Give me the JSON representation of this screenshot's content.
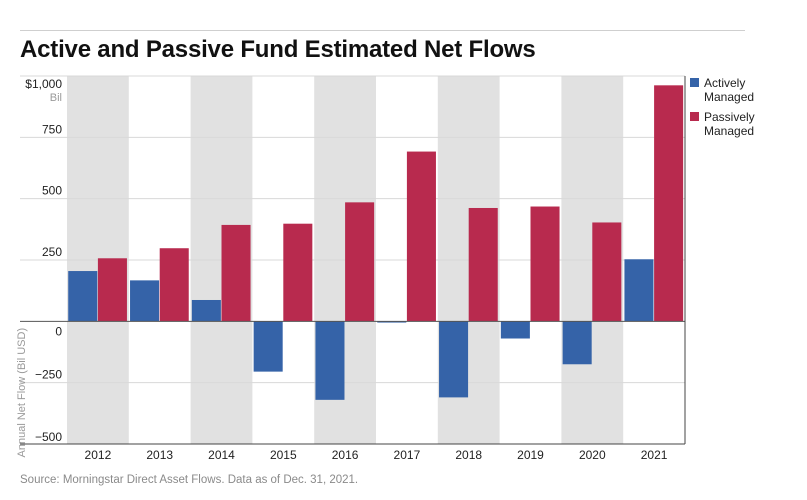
{
  "page": {
    "title": "Active and Passive Fund Estimated Net Flows",
    "source": "Source: Morningstar Direct Asset Flows. Data as of Dec. 31, 2021."
  },
  "colors": {
    "active": "#3563a8",
    "passive": "#b82a4e",
    "band": "#e1e1e1",
    "grid": "#d8d8d8",
    "axis": "#444444",
    "tick_text": "#222222"
  },
  "chart_data": {
    "type": "bar",
    "title": "Active and Passive Fund Estimated Net Flows",
    "ylabel": "Annual Net Flow (Bil USD)",
    "xlabel": "",
    "ylim": [
      -500,
      1000
    ],
    "yticks": [
      {
        "value": 1000,
        "label": "$1,000"
      },
      {
        "value": 750,
        "label": "750"
      },
      {
        "value": 500,
        "label": "500"
      },
      {
        "value": 250,
        "label": "250"
      },
      {
        "value": 0,
        "label": "0"
      },
      {
        "value": -250,
        "label": "−250"
      },
      {
        "value": -500,
        "label": "−500"
      }
    ],
    "ytick_unit": "Bil",
    "grid": true,
    "legend_position": "top-right",
    "categories": [
      "2012",
      "2013",
      "2014",
      "2015",
      "2016",
      "2017",
      "2018",
      "2019",
      "2020",
      "2021"
    ],
    "series": [
      {
        "name": "Actively Managed",
        "values": [
          205,
          167,
          87,
          -205,
          -320,
          -5,
          -310,
          -70,
          -175,
          253
        ]
      },
      {
        "name": "Passively Managed",
        "values": [
          257,
          298,
          393,
          398,
          485,
          692,
          462,
          468,
          403,
          962
        ]
      }
    ]
  }
}
